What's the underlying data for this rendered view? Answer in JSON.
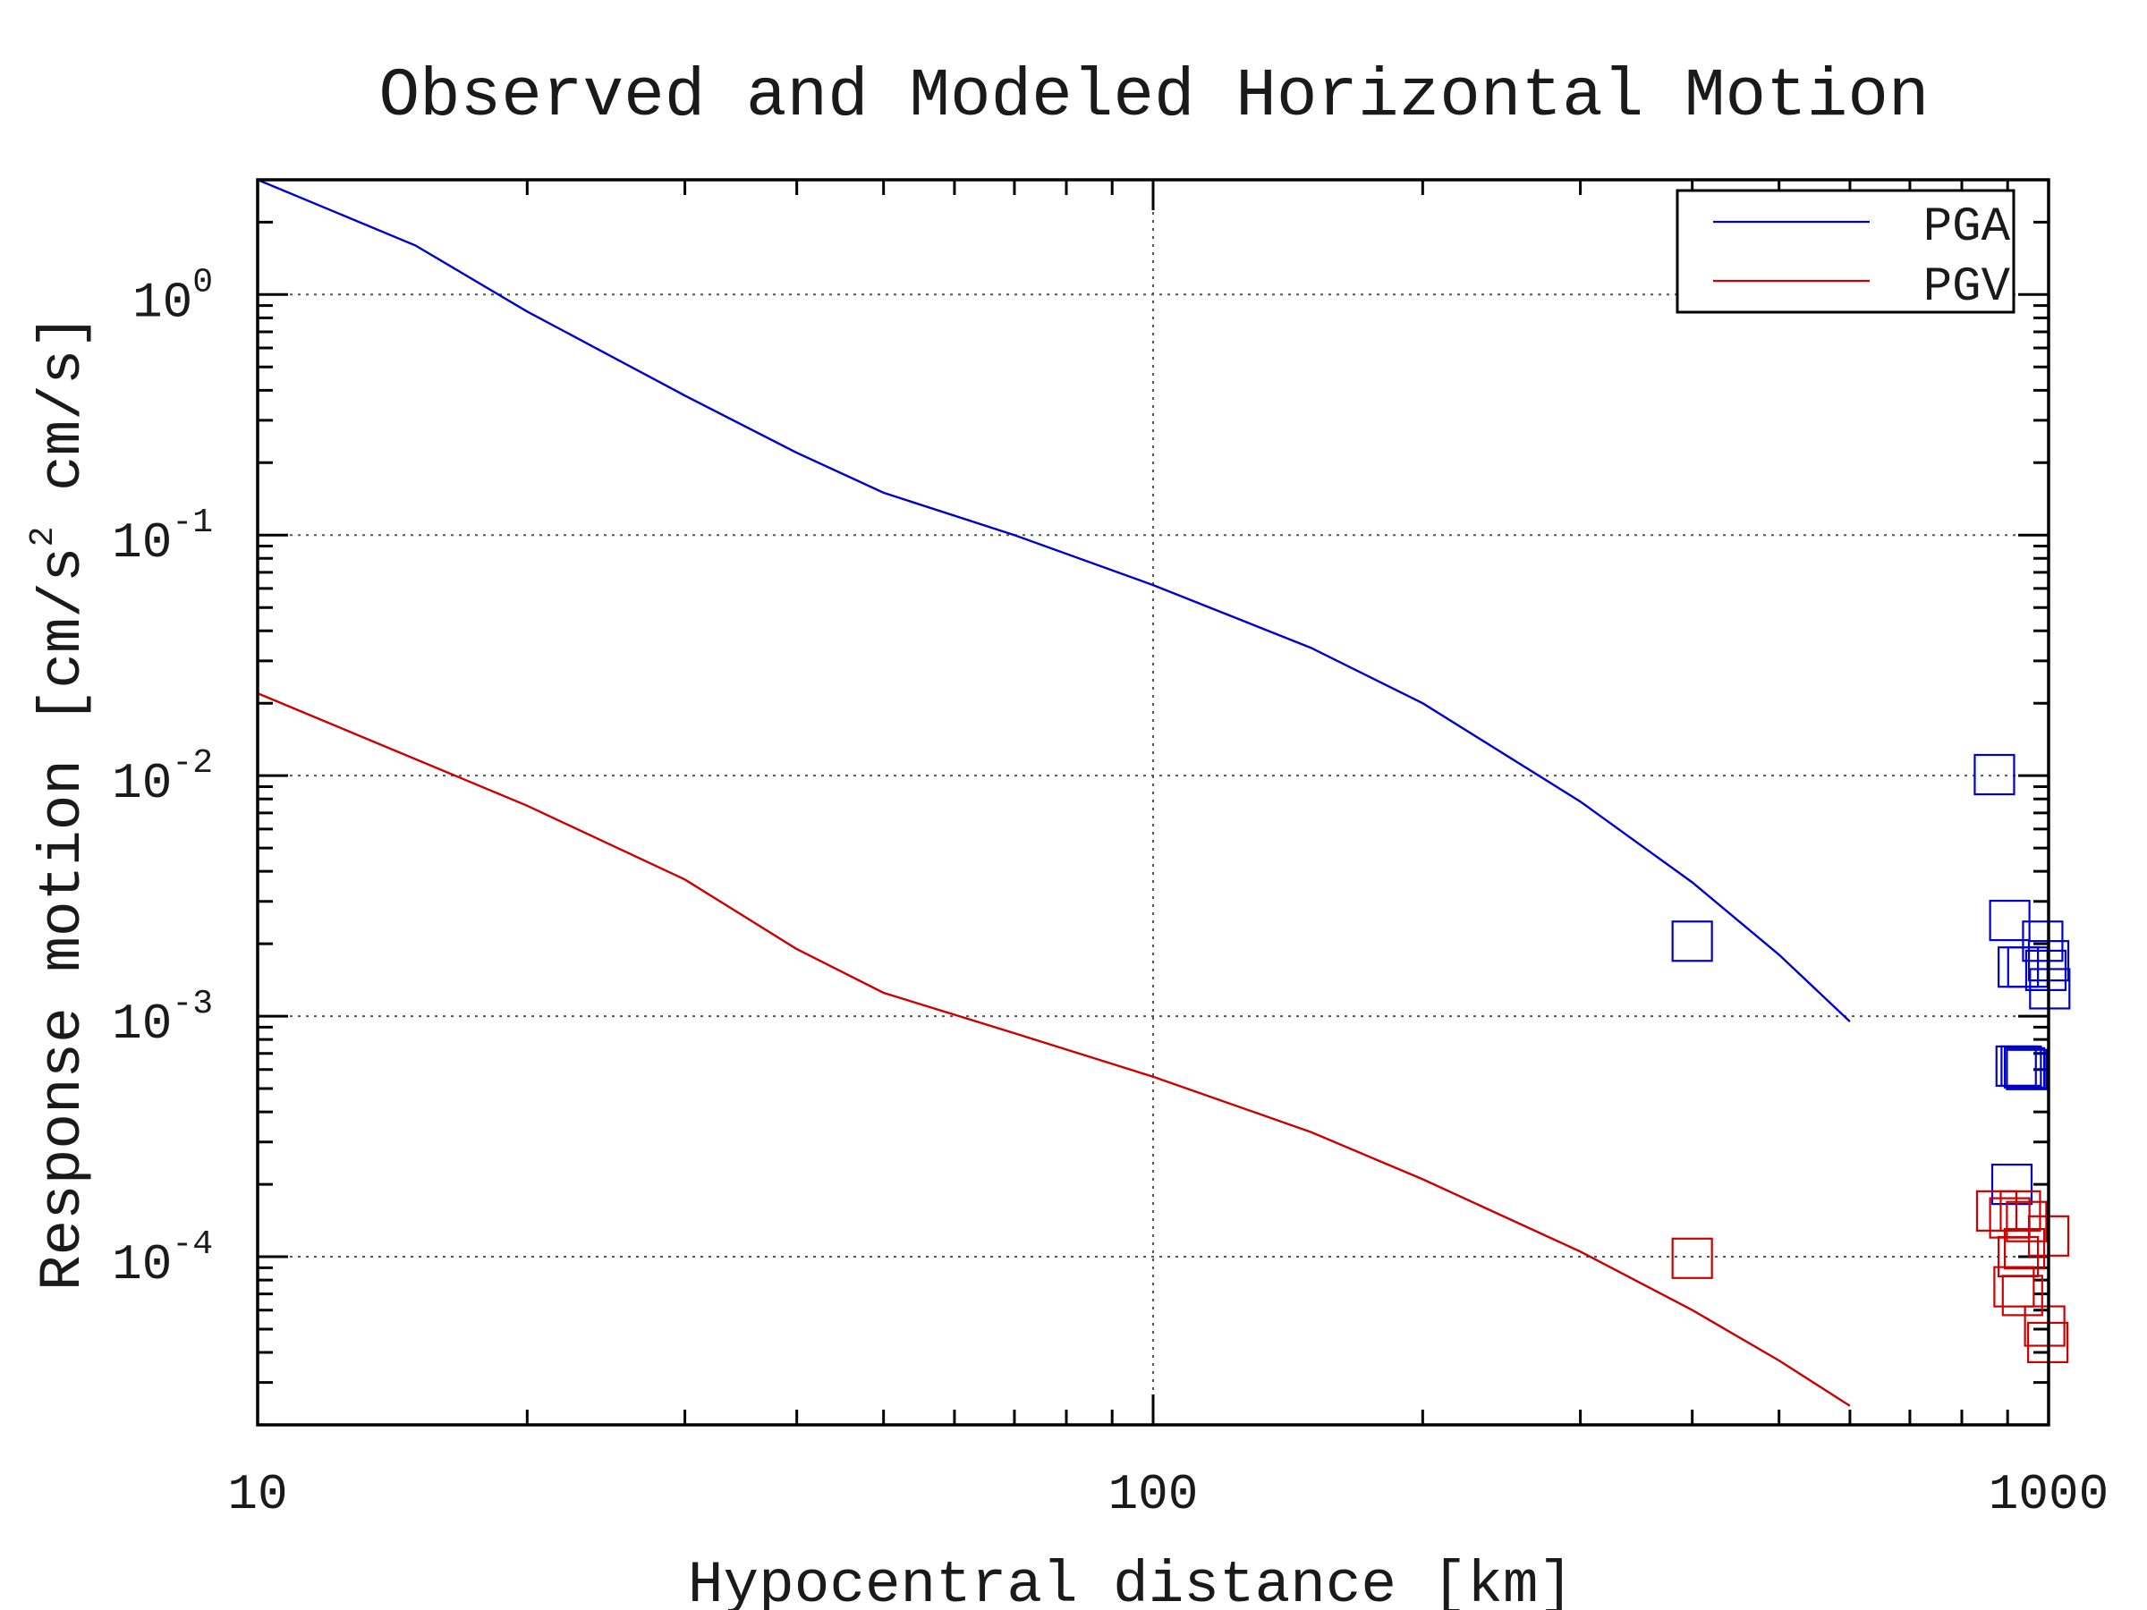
{
  "chart_data": {
    "type": "line",
    "title": "Observed and Modeled Horizontal Motion",
    "xlabel": "Hypocentral distance [km]",
    "ylabel_parts": [
      "Response motion  [cm/s",
      "2",
      "  cm/s]"
    ],
    "x_scale": "log",
    "y_scale": "log",
    "xlim": [
      10,
      1000
    ],
    "ylim": [
      2e-05,
      3
    ],
    "x_ticks": [
      {
        "value": 10,
        "label": "10"
      },
      {
        "value": 100,
        "label": "100"
      },
      {
        "value": 1000,
        "label": "1000"
      }
    ],
    "y_ticks": [
      {
        "value": 1,
        "base": "10",
        "exp": "0"
      },
      {
        "value": 0.1,
        "base": "10",
        "exp": "-1"
      },
      {
        "value": 0.01,
        "base": "10",
        "exp": "-2"
      },
      {
        "value": 0.001,
        "base": "10",
        "exp": "-3"
      },
      {
        "value": 0.0001,
        "base": "10",
        "exp": "-4"
      }
    ],
    "grid": true,
    "legend_position": "top-right",
    "series": [
      {
        "name": "PGA",
        "color": "#0000cc",
        "model": {
          "x": [
            10,
            15,
            20,
            30,
            40,
            50,
            70,
            100,
            150,
            200,
            300,
            400,
            500,
            600
          ],
          "y": [
            3.0,
            1.6,
            0.85,
            0.38,
            0.22,
            0.15,
            0.1,
            0.062,
            0.034,
            0.02,
            0.0078,
            0.0036,
            0.0018,
            0.00095
          ]
        },
        "observed": {
          "x": [
            400,
            870,
            905,
            925,
            932,
            920,
            940,
            985,
            1000,
            993,
            1003,
            948,
            945,
            910
          ],
          "y": [
            0.00205,
            0.0101,
            0.0025,
            0.0016,
            0.00062,
            0.00062,
            0.00061,
            0.00205,
            0.0017,
            0.00155,
            0.0013,
            0.0016,
            0.0006,
            0.0002
          ]
        }
      },
      {
        "name": "PGV",
        "color": "#cc0000",
        "model": {
          "x": [
            10,
            20,
            30,
            40,
            50,
            70,
            100,
            150,
            200,
            300,
            400,
            500,
            600
          ],
          "y": [
            0.022,
            0.0075,
            0.0037,
            0.0019,
            0.00125,
            0.00085,
            0.00056,
            0.00033,
            0.00021,
            0.000105,
            6e-05,
            3.7e-05,
            2.4e-05
          ]
        },
        "observed": {
          "x": [
            400,
            875,
            905,
            930,
            945,
            925,
            1000,
            915,
            935,
            990,
            998,
            940
          ],
          "y": [
            9.85e-05,
            0.000155,
            0.000145,
            0.000155,
            0.00014,
            0.0001,
            0.000122,
            7.5e-05,
            6.9e-05,
            5.15e-05,
            4.4e-05,
            0.000108
          ]
        }
      }
    ]
  }
}
